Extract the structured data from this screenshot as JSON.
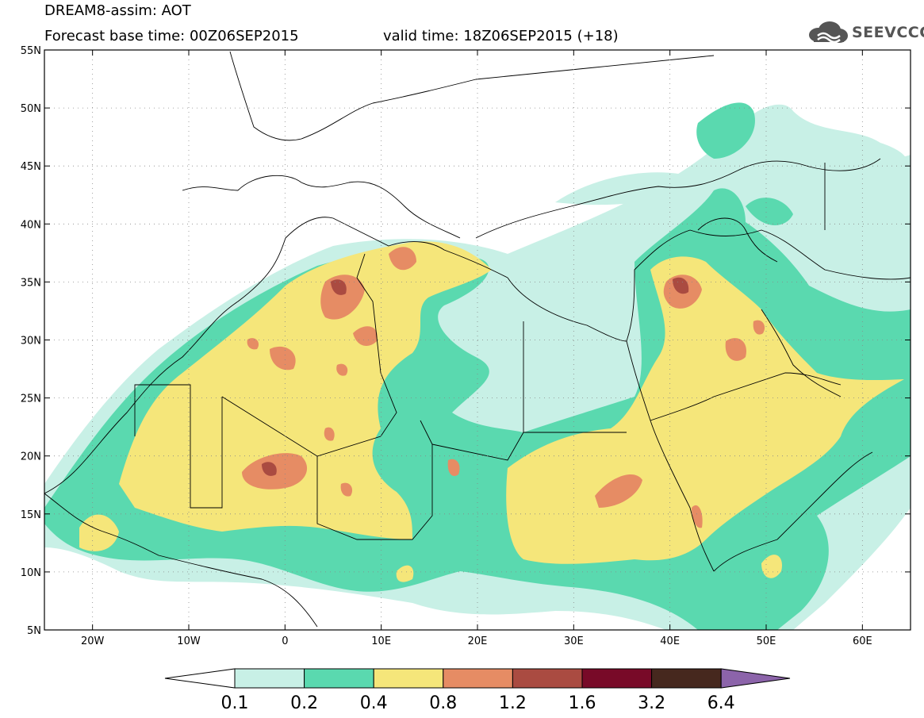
{
  "header": {
    "line1": "DREAM8-assim: AOT",
    "line2_left": "Forecast base time: 00Z06SEP2015",
    "line2_right": "valid time: 18Z06SEP2015 (+18)",
    "logo_text": "SEEVCCC"
  },
  "map": {
    "lon_range": [
      -25,
      65
    ],
    "lat_range": [
      5,
      55
    ],
    "lon_ticks": [
      {
        "value": -20,
        "label": "20W"
      },
      {
        "value": -10,
        "label": "10W"
      },
      {
        "value": 0,
        "label": "0"
      },
      {
        "value": 10,
        "label": "10E"
      },
      {
        "value": 20,
        "label": "20E"
      },
      {
        "value": 30,
        "label": "30E"
      },
      {
        "value": 40,
        "label": "40E"
      },
      {
        "value": 50,
        "label": "50E"
      },
      {
        "value": 60,
        "label": "60E"
      }
    ],
    "lat_ticks": [
      {
        "value": 55,
        "label": "55N"
      },
      {
        "value": 50,
        "label": "50N"
      },
      {
        "value": 45,
        "label": "45N"
      },
      {
        "value": 40,
        "label": "40N"
      },
      {
        "value": 35,
        "label": "35N"
      },
      {
        "value": 30,
        "label": "30N"
      },
      {
        "value": 25,
        "label": "25N"
      },
      {
        "value": 20,
        "label": "20N"
      },
      {
        "value": 15,
        "label": "15N"
      },
      {
        "value": 10,
        "label": "10N"
      },
      {
        "value": 5,
        "label": "5N"
      }
    ],
    "gridlines": true
  },
  "colorbar": {
    "levels": [
      "0.1",
      "0.2",
      "0.4",
      "0.8",
      "1.2",
      "1.6",
      "3.2",
      "6.4"
    ],
    "colors": [
      "#ffffff",
      "#c8f0e6",
      "#5ad9af",
      "#f5e67a",
      "#e68c64",
      "#aa4b41",
      "#780a28",
      "#46281e",
      "#8c64aa"
    ]
  },
  "chart_data": {
    "type": "heatmap",
    "variable": "AOT",
    "xlabel": "",
    "ylabel": "",
    "xlim": [
      -25,
      65
    ],
    "ylim": [
      5,
      55
    ]
  }
}
